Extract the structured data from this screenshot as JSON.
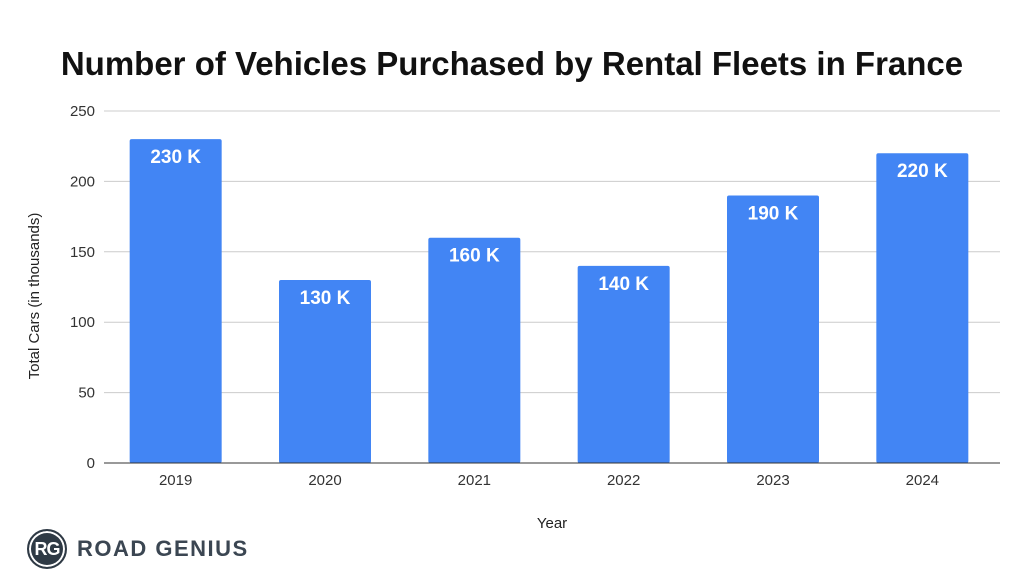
{
  "chart_data": {
    "type": "bar",
    "title": "Number of Vehicles Purchased by Rental Fleets in France",
    "xlabel": "Year",
    "ylabel": "Total Cars (in thousands)",
    "categories": [
      "2019",
      "2020",
      "2021",
      "2022",
      "2023",
      "2024"
    ],
    "values": [
      230,
      130,
      160,
      140,
      190,
      220
    ],
    "data_labels": [
      "230 K",
      "130 K",
      "160 K",
      "140 K",
      "190 K",
      "220 K"
    ],
    "ylim": [
      0,
      250
    ],
    "yticks": [
      "0",
      "50",
      "100",
      "150",
      "200",
      "250"
    ],
    "grid": true,
    "bar_color": "#4285f4"
  },
  "brand": {
    "badge": "RG",
    "name": "ROAD GENIUS"
  }
}
